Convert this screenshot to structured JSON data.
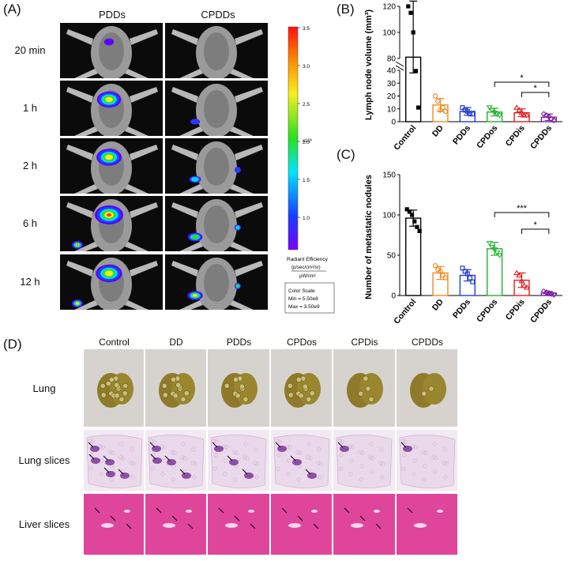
{
  "panels": {
    "A": "(A)",
    "B": "(B)",
    "C": "(C)",
    "D": "(D)"
  },
  "imaging": {
    "conditions": [
      "PDDs",
      "CPDDs"
    ],
    "timepoints": [
      "20 min",
      "1 h",
      "2 h",
      "6 h",
      "12 h"
    ],
    "signal": {
      "PDDs": [
        0.15,
        0.8,
        0.85,
        1.0,
        0.9
      ],
      "CPDDs": [
        0.0,
        0.35,
        0.5,
        0.7,
        0.75
      ]
    },
    "colorbar": {
      "ticks": [
        "3.5",
        "3.0",
        "2.5",
        "2.0",
        "1.5",
        "1.0"
      ],
      "exponent": "x10⁹",
      "title": "Radiant Efficiency",
      "unit_top": "(p/sec/cm²/sr)",
      "unit_bottom": "μW/cm²",
      "scale_title": "Color Scale",
      "scale_min": "Min = 5.50e8",
      "scale_max": "Max = 3.50e9"
    }
  },
  "chart_data": [
    {
      "type": "bar",
      "panel": "B",
      "ylabel": "Lymph node volume (mm³)",
      "categories": [
        "Control",
        "DD",
        "PDDs",
        "CPDos",
        "CPDis",
        "CPDDs"
      ],
      "values": [
        81,
        13,
        8,
        7.5,
        7,
        3.5
      ],
      "errors": [
        43,
        5,
        3,
        3,
        3,
        2.5
      ],
      "points": [
        [
          120,
          115,
          100,
          39.5,
          11
        ],
        [
          20,
          16,
          9,
          11,
          8
        ],
        [
          11,
          9,
          8,
          6,
          6
        ],
        [
          11,
          9,
          7,
          6,
          5
        ],
        [
          11,
          9,
          7,
          5,
          5
        ],
        [
          6,
          5,
          4,
          2,
          1
        ]
      ],
      "colors": [
        "#000000",
        "#f28a1e",
        "#1f3bd6",
        "#22b22f",
        "#e31a1c",
        "#7b1fa2"
      ],
      "broken_axis": true,
      "ylim_lower": [
        0,
        40
      ],
      "ylim_upper": [
        80,
        120
      ],
      "yticks": [
        "0",
        "10",
        "20",
        "30",
        "40",
        "80",
        "100",
        "120"
      ],
      "significance": [
        {
          "from": "CPDos",
          "to": "CPDDs",
          "label": "*"
        },
        {
          "from": "CPDis",
          "to": "CPDDs",
          "label": "*"
        }
      ]
    },
    {
      "type": "bar",
      "panel": "C",
      "ylabel": "Number of metastatic nodules",
      "categories": [
        "Control",
        "DD",
        "PDDs",
        "CPDos",
        "CPDis",
        "CPDDs"
      ],
      "values": [
        96,
        28,
        25,
        58,
        19,
        3
      ],
      "errors": [
        10,
        8,
        7,
        8,
        9,
        2
      ],
      "points": [
        [
          107,
          104,
          100,
          92,
          85,
          80
        ],
        [
          37,
          32,
          30,
          25,
          22
        ],
        [
          34,
          30,
          27,
          22,
          17
        ],
        [
          65,
          60,
          57,
          53,
          50
        ],
        [
          28,
          25,
          18,
          12,
          10
        ],
        [
          5,
          4,
          3,
          2,
          1
        ]
      ],
      "colors": [
        "#000000",
        "#f28a1e",
        "#1f3bd6",
        "#22b22f",
        "#e31a1c",
        "#7b1fa2"
      ],
      "ylim": [
        0,
        150
      ],
      "yticks": [
        "0",
        "50",
        "100",
        "150"
      ],
      "significance": [
        {
          "from": "CPDos",
          "to": "CPDDs",
          "label": "***"
        },
        {
          "from": "CPDis",
          "to": "CPDDs",
          "label": "*"
        }
      ]
    }
  ],
  "histology": {
    "groups": [
      "Control",
      "DD",
      "PDDs",
      "CPDos",
      "CPDis",
      "CPDDs"
    ],
    "rows": [
      "Lung",
      "Lung slices",
      "Liver slices"
    ]
  }
}
